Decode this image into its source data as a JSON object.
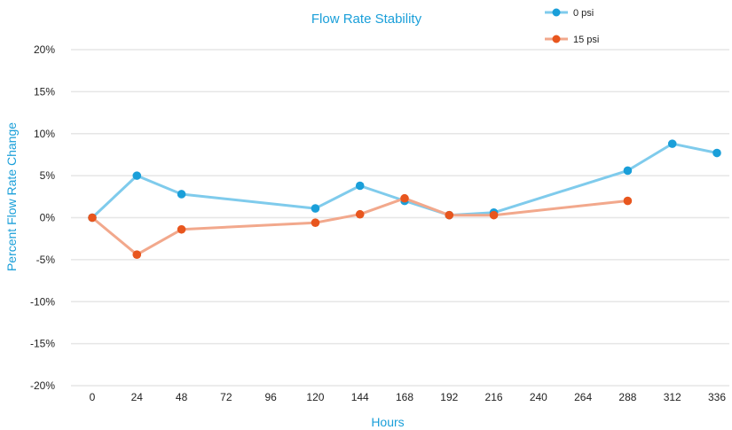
{
  "chart_data": {
    "type": "line",
    "title": "Flow Rate Stability",
    "xlabel": "Hours",
    "ylabel": "Percent Flow Rate Change",
    "x_ticks": [
      "0",
      "24",
      "48",
      "72",
      "96",
      "120",
      "144",
      "168",
      "192",
      "216",
      "240",
      "264",
      "288",
      "312",
      "336"
    ],
    "y_ticks": [
      "20%",
      "15%",
      "10%",
      "5%",
      "0%",
      "-5%",
      "-10%",
      "-15%",
      "-20%"
    ],
    "xlim": [
      0,
      336
    ],
    "ylim": [
      -20,
      20
    ],
    "grid": "horizontal",
    "legend_position": "top-right",
    "series": [
      {
        "name": "0 psi",
        "color": "#7fcbec",
        "marker_color": "#1a9fd9",
        "x": [
          0,
          24,
          48,
          120,
          144,
          168,
          192,
          216,
          288,
          312,
          336
        ],
        "y": [
          0,
          5.0,
          2.8,
          1.1,
          3.8,
          2.0,
          0.3,
          0.6,
          5.6,
          8.8,
          7.7
        ]
      },
      {
        "name": "15 psi",
        "color": "#f2a88c",
        "marker_color": "#e8561e",
        "x": [
          0,
          24,
          48,
          120,
          144,
          168,
          192,
          216,
          288
        ],
        "y": [
          0,
          -4.4,
          -1.4,
          -0.6,
          0.4,
          2.3,
          0.3,
          0.3,
          2.0
        ]
      }
    ]
  }
}
